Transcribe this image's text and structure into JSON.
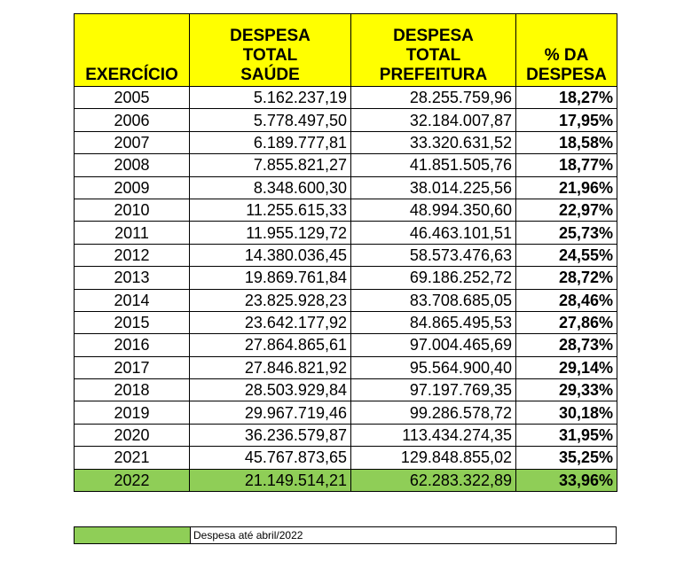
{
  "table": {
    "header": [
      "EXERCÍCIO",
      "DESPESA\nTOTAL\nSAÚDE",
      "DESPESA\nTOTAL\nPREFEITURA",
      "% DA\nDESPESA"
    ],
    "rows": [
      [
        "2005",
        "5.162.237,19",
        "28.255.759,96",
        "18,27%"
      ],
      [
        "2006",
        "5.778.497,50",
        "32.184.007,87",
        "17,95%"
      ],
      [
        "2007",
        "6.189.777,81",
        "33.320.631,52",
        "18,58%"
      ],
      [
        "2008",
        "7.855.821,27",
        "41.851.505,76",
        "18,77%"
      ],
      [
        "2009",
        "8.348.600,30",
        "38.014.225,56",
        "21,96%"
      ],
      [
        "2010",
        "11.255.615,33",
        "48.994.350,60",
        "22,97%"
      ],
      [
        "2011",
        "11.955.129,72",
        "46.463.101,51",
        "25,73%"
      ],
      [
        "2012",
        "14.380.036,45",
        "58.573.476,63",
        "24,55%"
      ],
      [
        "2013",
        "19.869.761,84",
        "69.186.252,72",
        "28,72%"
      ],
      [
        "2014",
        "23.825.928,23",
        "83.708.685,05",
        "28,46%"
      ],
      [
        "2015",
        "23.642.177,92",
        "84.865.495,53",
        "27,86%"
      ],
      [
        "2016",
        "27.864.865,61",
        "97.004.465,69",
        "28,73%"
      ],
      [
        "2017",
        "27.846.821,92",
        "95.564.900,40",
        "29,14%"
      ],
      [
        "2018",
        "28.503.929,84",
        "97.197.769,35",
        "29,33%"
      ],
      [
        "2019",
        "29.967.719,46",
        "99.286.578,72",
        "30,18%"
      ],
      [
        "2020",
        "36.236.579,87",
        "113.434.274,35",
        "31,95%"
      ],
      [
        "2021",
        "45.767.873,65",
        "129.848.855,02",
        "35,25%"
      ],
      [
        "2022",
        "21.149.514,21",
        "62.283.322,89",
        "33,96%"
      ]
    ]
  },
  "legend": {
    "label": "Despesa até abril/2022"
  }
}
